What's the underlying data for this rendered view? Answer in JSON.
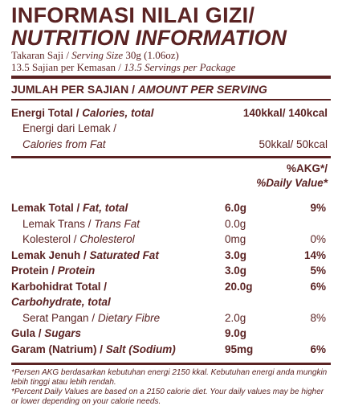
{
  "title": {
    "line1": "INFORMASI NILAI GIZI/",
    "line2": "NUTRITION INFORMATION"
  },
  "serving": {
    "size_id": "Takaran Saji / ",
    "size_en": "Serving Size",
    "size_val": " 30g (1.06oz)",
    "per_pkg_id": "13.5 Sajian per Kemasan / ",
    "per_pkg_en": "13.5 Servings per Package"
  },
  "amount_header": {
    "id": "JUMLAH PER SAJIAN / ",
    "en": "AMOUNT PER SERVING"
  },
  "energy": {
    "label_id": "Energi Total / ",
    "label_en": "Calories, total",
    "value": "140kkal/ 140kcal",
    "fat_label_id": "Energi dari Lemak /",
    "fat_label_en": "Calories from Fat",
    "fat_value": "50kkal/ 50kcal"
  },
  "akg_header": {
    "line1": "%AKG*/",
    "line2": "%Daily Value*"
  },
  "nutrients": [
    {
      "id": "Lemak Total / ",
      "en": "Fat, total",
      "amount": "6.0g",
      "pct": "9%",
      "bold": true,
      "indent": false
    },
    {
      "id": "Lemak Trans / ",
      "en": "Trans Fat",
      "amount": "0.0g",
      "pct": "",
      "bold": false,
      "indent": true
    },
    {
      "id": "Kolesterol / ",
      "en": "Cholesterol",
      "amount": "0mg",
      "pct": "0%",
      "bold": false,
      "indent": true
    },
    {
      "id": "Lemak Jenuh / ",
      "en": "Saturated Fat",
      "amount": "3.0g",
      "pct": "14%",
      "bold": true,
      "indent": false
    },
    {
      "id": "Protein / ",
      "en": "Protein",
      "amount": "3.0g",
      "pct": "5%",
      "bold": true,
      "indent": false
    },
    {
      "id": "Karbohidrat Total / ",
      "en": "",
      "amount": "20.0g",
      "pct": "6%",
      "bold": true,
      "indent": false
    },
    {
      "id": "",
      "en": "Carbohydrate, total",
      "amount": "",
      "pct": "",
      "bold": true,
      "indent": false
    },
    {
      "id": "Serat Pangan / ",
      "en": "Dietary Fibre",
      "amount": "2.0g",
      "pct": "8%",
      "bold": false,
      "indent": true
    },
    {
      "id": "Gula / ",
      "en": "Sugars",
      "amount": "9.0g",
      "pct": "",
      "bold": true,
      "indent": false
    },
    {
      "id": "Garam (Natrium) / ",
      "en": "Salt (Sodium)",
      "amount": "95mg",
      "pct": "6%",
      "bold": true,
      "indent": false
    }
  ],
  "footnotes": {
    "id": "*Persen AKG berdasarkan kebutuhan energi 2150 kkal. Kebutuhan energi anda mungkin lebih tinggi atau lebih rendah.",
    "en": "*Percent Daily Values are based on a 2150 calorie diet. Your daily values may be higher or lower depending on your calorie needs."
  },
  "colors": {
    "ink": "#5b2323",
    "background": "#ffffff"
  }
}
